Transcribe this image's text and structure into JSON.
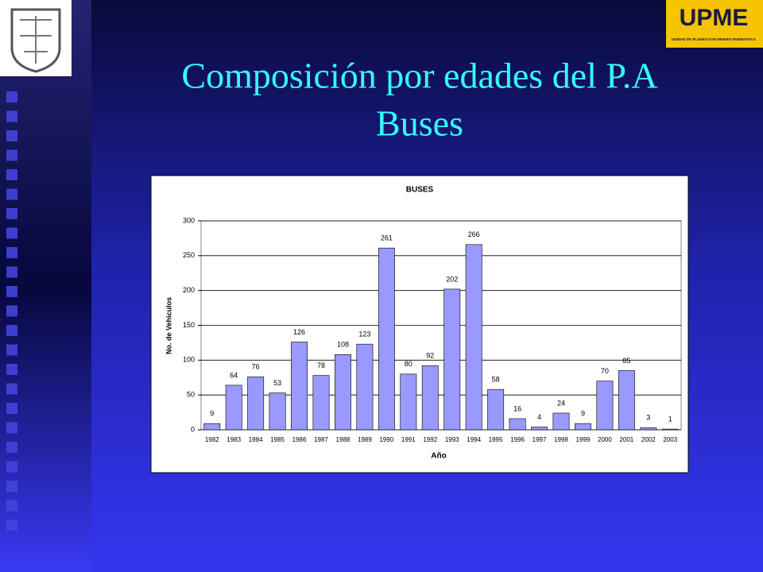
{
  "slide": {
    "title_line1": "Composición por edades del P.A",
    "title_line2": "Buses"
  },
  "logo": {
    "name": "UPME",
    "subtitle": "UNIDAD DE PLANEACION MINERO ENERGETICA"
  },
  "chart_data": {
    "type": "bar",
    "title": "BUSES",
    "x_label": "Año",
    "y_label": "No. de Vehiculos",
    "categories": [
      "1982",
      "1983",
      "1984",
      "1985",
      "1986",
      "1987",
      "1988",
      "1989",
      "1990",
      "1991",
      "1992",
      "1993",
      "1994",
      "1995",
      "1996",
      "1997",
      "1998",
      "1999",
      "2000",
      "2001",
      "2002",
      "2003"
    ],
    "values": [
      9,
      64,
      76,
      53,
      126,
      78,
      108,
      123,
      261,
      80,
      92,
      202,
      266,
      58,
      16,
      4,
      24,
      9,
      70,
      85,
      3,
      1
    ],
    "color": "#9999ff",
    "ylim": [
      0,
      300
    ],
    "yticks": [
      0,
      50,
      100,
      150,
      200,
      250,
      300
    ],
    "grid": true
  }
}
